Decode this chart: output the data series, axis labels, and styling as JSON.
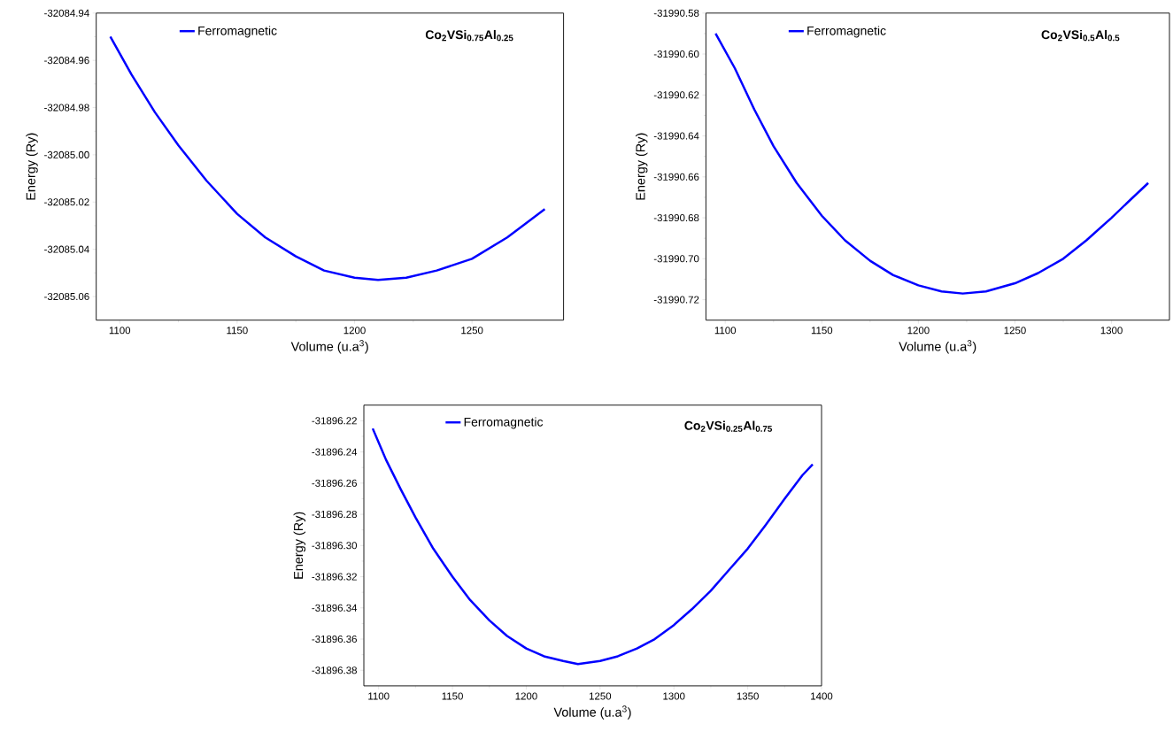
{
  "chart_data": [
    {
      "type": "line",
      "xlabel": "Volume (u.a$^{3}$)",
      "ylabel": "Energy (Ry)",
      "annotations": [
        "Co$_{2}$VSi$_{0.75}$Al$_{0.25}$"
      ],
      "legend": "top left",
      "xlim": [
        1090,
        1289
      ],
      "ylim": [
        -32085.07,
        -32084.94
      ],
      "xticks": [
        1100,
        1150,
        1200,
        1250
      ],
      "yticks": [
        -32084.94,
        -32084.96,
        -32084.98,
        {
          "value": -32085.0,
          "label": "-32085.00"
        },
        -32085.02,
        -32085.04,
        -32085.06
      ],
      "series": [
        {
          "name": "Ferromagnetic",
          "color": "#0000ff",
          "x": [
            1096,
            1105,
            1115,
            1125,
            1137,
            1150,
            1162,
            1175,
            1187,
            1200,
            1210,
            1222,
            1235,
            1250,
            1265,
            1281
          ],
          "values": [
            -32084.95,
            -32084.966,
            -32084.982,
            -32084.996,
            -32085.011,
            -32085.025,
            -32085.035,
            -32085.043,
            -32085.049,
            -32085.052,
            -32085.053,
            -32085.052,
            -32085.049,
            -32085.044,
            -32085.035,
            -32085.023
          ]
        }
      ]
    },
    {
      "type": "line",
      "xlabel": "Volume (u.a$^{3}$)",
      "ylabel": "Energy (Ry)",
      "annotations": [
        "Co$_{2}$VSi$_{0.5}$Al$_{0.5}$"
      ],
      "legend": "top left",
      "xlim": [
        1090,
        1330
      ],
      "ylim": [
        -31990.73,
        -31990.58
      ],
      "xticks": [
        1100,
        1150,
        1200,
        1250,
        1300
      ],
      "yticks": [
        -31990.58,
        {
          "value": -31990.6,
          "label": "-31990.60"
        },
        -31990.62,
        -31990.64,
        -31990.66,
        -31990.68,
        {
          "value": -31990.7,
          "label": "-31990.70"
        },
        -31990.72
      ],
      "series": [
        {
          "name": "Ferromagnetic",
          "color": "#0000ff",
          "x": [
            1095,
            1105,
            1115,
            1125,
            1137,
            1150,
            1162,
            1175,
            1187,
            1200,
            1212,
            1223,
            1235,
            1250,
            1262,
            1275,
            1287,
            1300,
            1310,
            1319
          ],
          "values": [
            -31990.59,
            -31990.607,
            -31990.627,
            -31990.645,
            -31990.663,
            -31990.679,
            -31990.691,
            -31990.701,
            -31990.708,
            -31990.713,
            -31990.716,
            -31990.717,
            -31990.716,
            -31990.712,
            -31990.707,
            -31990.7,
            -31990.691,
            -31990.68,
            -31990.671,
            -31990.663
          ]
        }
      ]
    },
    {
      "type": "line",
      "xlabel": "Volume (u.a$^{3}$)",
      "ylabel": "Energy (Ry)",
      "annotations": [
        "Co$_{2}$VSi$_{0.25}$Al$_{0.75}$"
      ],
      "legend": "top left",
      "xlim": [
        1090,
        1400
      ],
      "ylim": [
        -31896.39,
        -31896.21
      ],
      "xticks": [
        1100,
        1150,
        1200,
        1250,
        1300,
        1350,
        1400
      ],
      "yticks": [
        -31896.22,
        -31896.24,
        -31896.26,
        -31896.28,
        {
          "value": -31896.3,
          "label": "-31896.30"
        },
        -31896.32,
        -31896.34,
        -31896.36,
        -31896.38
      ],
      "series": [
        {
          "name": "Ferromagnetic",
          "color": "#0000ff",
          "x": [
            1096,
            1105,
            1115,
            1125,
            1137,
            1150,
            1162,
            1175,
            1187,
            1200,
            1212,
            1225,
            1235,
            1250,
            1262,
            1275,
            1287,
            1300,
            1312,
            1325,
            1337,
            1350,
            1362,
            1375,
            1387,
            1394
          ],
          "values": [
            -31896.225,
            -31896.245,
            -31896.264,
            -31896.282,
            -31896.302,
            -31896.32,
            -31896.335,
            -31896.348,
            -31896.358,
            -31896.366,
            -31896.371,
            -31896.374,
            -31896.376,
            -31896.374,
            -31896.371,
            -31896.366,
            -31896.36,
            -31896.351,
            -31896.341,
            -31896.329,
            -31896.316,
            -31896.302,
            -31896.287,
            -31896.27,
            -31896.255,
            -31896.248
          ]
        }
      ]
    }
  ]
}
